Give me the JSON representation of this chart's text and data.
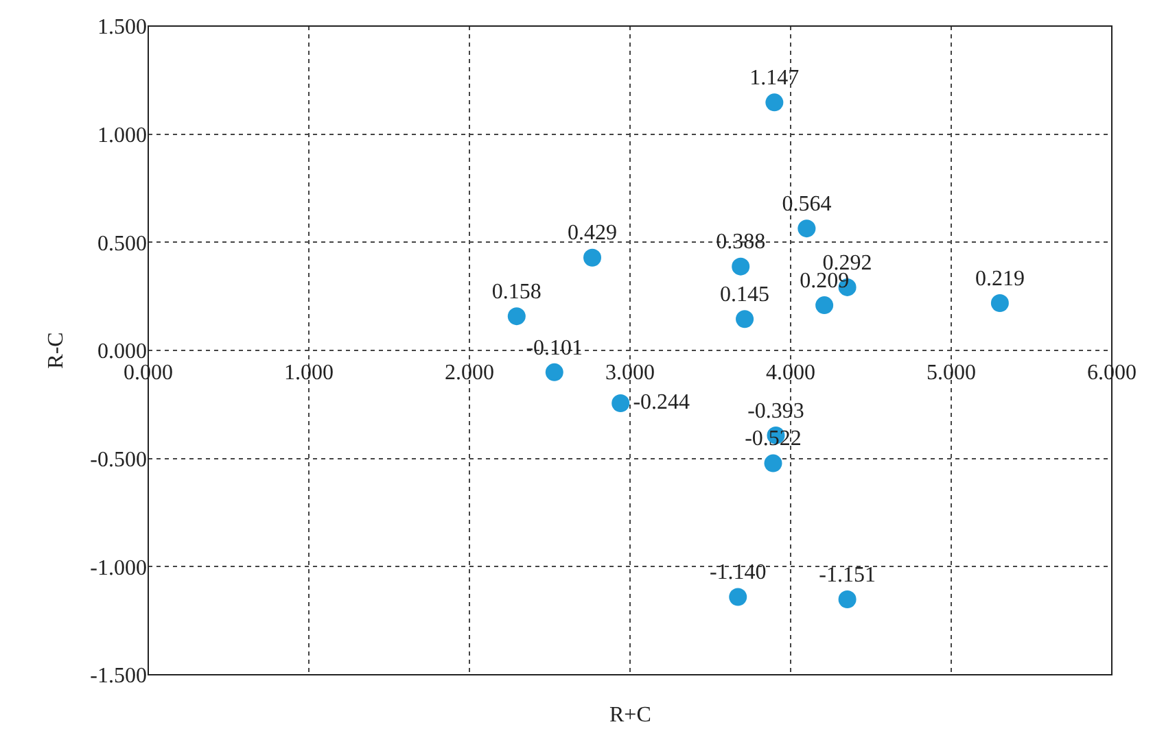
{
  "chart_data": {
    "type": "scatter",
    "xlabel": "R+C",
    "ylabel": "R-C",
    "x": [
      3.899,
      4.1,
      3.689,
      3.714,
      4.21,
      4.353,
      5.303,
      2.765,
      2.294,
      2.529,
      2.941,
      3.908,
      3.891,
      3.672,
      4.353
    ],
    "series": [
      {
        "color": "#1f9bd7",
        "values": [
          1.147,
          0.564,
          0.388,
          0.145,
          0.209,
          0.292,
          0.219,
          0.429,
          0.158,
          -0.101,
          -0.244,
          -0.393,
          -0.522,
          -1.14,
          -1.151
        ]
      }
    ],
    "xlim": [
      0,
      6
    ],
    "xticks": [
      {
        "value": 0,
        "label": "0.000"
      },
      {
        "value": 1,
        "label": "1.000"
      },
      {
        "value": 2,
        "label": "2.000"
      },
      {
        "value": 3,
        "label": "3.000"
      },
      {
        "value": 4,
        "label": "4.000"
      },
      {
        "value": 5,
        "label": "5.000"
      },
      {
        "value": 6,
        "label": "6.000"
      }
    ],
    "ylim": [
      -1.5,
      1.5
    ],
    "yticks": [
      {
        "value": -1.5,
        "label": "-1.500"
      },
      {
        "value": -1,
        "label": "-1.000"
      },
      {
        "value": -0.5,
        "label": "-0.500"
      },
      {
        "value": 0,
        "label": "0.000"
      },
      {
        "value": 0.5,
        "label": "0.500"
      },
      {
        "value": 1,
        "label": "1.000"
      },
      {
        "value": 1.5,
        "label": "1.500"
      }
    ],
    "value_labels": [
      "1.147",
      "0.564",
      "0.388",
      "0.145",
      "0.209",
      "0.292",
      "0.219",
      "0.429",
      "0.158",
      "-0.101",
      "-0.244",
      "-0.393",
      "-0.522",
      "-1.140",
      "-1.151"
    ],
    "grid": true,
    "marker": "circle"
  }
}
